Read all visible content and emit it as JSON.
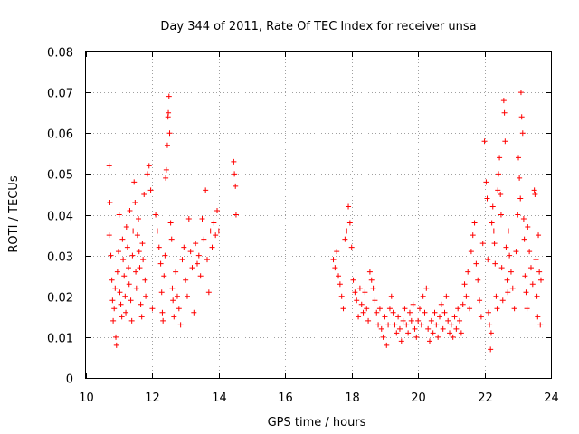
{
  "chart_data": {
    "type": "scatter",
    "title": "Day 344 of 2011, Rate Of TEC Index for receiver unsa",
    "xlabel": "GPS time / hours",
    "ylabel": "ROTI / TECUs",
    "xlim": [
      10,
      24
    ],
    "ylim": [
      0,
      0.08
    ],
    "x_ticks": [
      10,
      12,
      14,
      16,
      18,
      20,
      22,
      24
    ],
    "x_tick_labels": [
      "10",
      "12",
      "14",
      "16",
      "18",
      "20",
      "22",
      "24"
    ],
    "y_ticks": [
      0,
      0.01,
      0.02,
      0.03,
      0.04,
      0.05,
      0.06,
      0.07,
      0.08
    ],
    "y_tick_labels": [
      "0",
      "0.01",
      "0.02",
      "0.03",
      "0.04",
      "0.05",
      "0.06",
      "0.07",
      "0.08"
    ],
    "grid": true,
    "marker": "plus",
    "color": "#ff0000",
    "series": [
      {
        "points": [
          [
            10.7,
            0.052
          ],
          [
            10.72,
            0.043
          ],
          [
            10.7,
            0.035
          ],
          [
            10.75,
            0.03
          ],
          [
            10.78,
            0.024
          ],
          [
            10.8,
            0.019
          ],
          [
            10.82,
            0.014
          ],
          [
            10.85,
            0.017
          ],
          [
            10.88,
            0.022
          ],
          [
            10.9,
            0.01
          ],
          [
            10.92,
            0.008
          ],
          [
            10.95,
            0.026
          ],
          [
            10.98,
            0.031
          ],
          [
            11.0,
            0.04
          ],
          [
            11.02,
            0.021
          ],
          [
            11.05,
            0.018
          ],
          [
            11.08,
            0.015
          ],
          [
            11.1,
            0.034
          ],
          [
            11.12,
            0.029
          ],
          [
            11.15,
            0.025
          ],
          [
            11.18,
            0.02
          ],
          [
            11.2,
            0.016
          ],
          [
            11.22,
            0.037
          ],
          [
            11.25,
            0.032
          ],
          [
            11.28,
            0.027
          ],
          [
            11.3,
            0.023
          ],
          [
            11.32,
            0.041
          ],
          [
            11.35,
            0.019
          ],
          [
            11.38,
            0.014
          ],
          [
            11.4,
            0.03
          ],
          [
            11.42,
            0.036
          ],
          [
            11.45,
            0.048
          ],
          [
            11.48,
            0.043
          ],
          [
            11.5,
            0.026
          ],
          [
            11.52,
            0.022
          ],
          [
            11.55,
            0.035
          ],
          [
            11.58,
            0.039
          ],
          [
            11.6,
            0.031
          ],
          [
            11.62,
            0.027
          ],
          [
            11.65,
            0.018
          ],
          [
            11.68,
            0.015
          ],
          [
            11.7,
            0.033
          ],
          [
            11.72,
            0.029
          ],
          [
            11.75,
            0.045
          ],
          [
            11.78,
            0.024
          ],
          [
            11.8,
            0.02
          ],
          [
            11.85,
            0.05
          ],
          [
            11.9,
            0.052
          ],
          [
            11.95,
            0.046
          ],
          [
            12.0,
            0.017
          ],
          [
            12.1,
            0.04
          ],
          [
            12.15,
            0.036
          ],
          [
            12.2,
            0.032
          ],
          [
            12.25,
            0.028
          ],
          [
            12.28,
            0.021
          ],
          [
            12.3,
            0.016
          ],
          [
            12.32,
            0.014
          ],
          [
            12.35,
            0.025
          ],
          [
            12.38,
            0.03
          ],
          [
            12.4,
            0.049
          ],
          [
            12.42,
            0.051
          ],
          [
            12.45,
            0.057
          ],
          [
            12.47,
            0.064
          ],
          [
            12.48,
            0.065
          ],
          [
            12.5,
            0.069
          ],
          [
            12.52,
            0.06
          ],
          [
            12.55,
            0.038
          ],
          [
            12.58,
            0.034
          ],
          [
            12.6,
            0.022
          ],
          [
            12.62,
            0.019
          ],
          [
            12.65,
            0.015
          ],
          [
            12.7,
            0.026
          ],
          [
            12.75,
            0.02
          ],
          [
            12.8,
            0.017
          ],
          [
            12.85,
            0.013
          ],
          [
            12.9,
            0.029
          ],
          [
            12.95,
            0.032
          ],
          [
            13.0,
            0.024
          ],
          [
            13.05,
            0.02
          ],
          [
            13.1,
            0.039
          ],
          [
            13.15,
            0.031
          ],
          [
            13.2,
            0.027
          ],
          [
            13.25,
            0.016
          ],
          [
            13.3,
            0.033
          ],
          [
            13.35,
            0.028
          ],
          [
            13.4,
            0.03
          ],
          [
            13.45,
            0.025
          ],
          [
            13.5,
            0.039
          ],
          [
            13.55,
            0.034
          ],
          [
            13.6,
            0.046
          ],
          [
            13.65,
            0.029
          ],
          [
            13.7,
            0.021
          ],
          [
            13.75,
            0.036
          ],
          [
            13.8,
            0.032
          ],
          [
            13.85,
            0.038
          ],
          [
            13.9,
            0.035
          ],
          [
            13.95,
            0.041
          ],
          [
            14.0,
            0.036
          ],
          [
            14.45,
            0.053
          ],
          [
            14.47,
            0.05
          ],
          [
            14.5,
            0.047
          ],
          [
            14.52,
            0.04
          ],
          [
            17.45,
            0.029
          ],
          [
            17.5,
            0.027
          ],
          [
            17.55,
            0.031
          ],
          [
            17.6,
            0.025
          ],
          [
            17.65,
            0.023
          ],
          [
            17.7,
            0.02
          ],
          [
            17.75,
            0.017
          ],
          [
            17.8,
            0.034
          ],
          [
            17.85,
            0.036
          ],
          [
            17.9,
            0.042
          ],
          [
            17.95,
            0.038
          ],
          [
            18.0,
            0.032
          ],
          [
            18.05,
            0.024
          ],
          [
            18.1,
            0.021
          ],
          [
            18.15,
            0.019
          ],
          [
            18.2,
            0.015
          ],
          [
            18.25,
            0.022
          ],
          [
            18.3,
            0.018
          ],
          [
            18.35,
            0.016
          ],
          [
            18.4,
            0.021
          ],
          [
            18.45,
            0.017
          ],
          [
            18.5,
            0.014
          ],
          [
            18.55,
            0.026
          ],
          [
            18.6,
            0.024
          ],
          [
            18.65,
            0.022
          ],
          [
            18.7,
            0.019
          ],
          [
            18.75,
            0.016
          ],
          [
            18.8,
            0.013
          ],
          [
            18.85,
            0.017
          ],
          [
            18.9,
            0.012
          ],
          [
            18.95,
            0.01
          ],
          [
            19.0,
            0.015
          ],
          [
            19.05,
            0.008
          ],
          [
            19.1,
            0.013
          ],
          [
            19.15,
            0.017
          ],
          [
            19.2,
            0.02
          ],
          [
            19.25,
            0.016
          ],
          [
            19.3,
            0.013
          ],
          [
            19.35,
            0.011
          ],
          [
            19.4,
            0.015
          ],
          [
            19.45,
            0.012
          ],
          [
            19.5,
            0.009
          ],
          [
            19.55,
            0.014
          ],
          [
            19.6,
            0.017
          ],
          [
            19.65,
            0.013
          ],
          [
            19.7,
            0.011
          ],
          [
            19.75,
            0.016
          ],
          [
            19.8,
            0.014
          ],
          [
            19.85,
            0.018
          ],
          [
            19.9,
            0.012
          ],
          [
            19.95,
            0.01
          ],
          [
            20.0,
            0.014
          ],
          [
            20.05,
            0.017
          ],
          [
            20.1,
            0.013
          ],
          [
            20.15,
            0.02
          ],
          [
            20.2,
            0.016
          ],
          [
            20.25,
            0.022
          ],
          [
            20.3,
            0.012
          ],
          [
            20.35,
            0.009
          ],
          [
            20.4,
            0.014
          ],
          [
            20.45,
            0.011
          ],
          [
            20.5,
            0.016
          ],
          [
            20.55,
            0.013
          ],
          [
            20.6,
            0.01
          ],
          [
            20.65,
            0.015
          ],
          [
            20.7,
            0.018
          ],
          [
            20.75,
            0.012
          ],
          [
            20.8,
            0.016
          ],
          [
            20.85,
            0.02
          ],
          [
            20.9,
            0.014
          ],
          [
            20.95,
            0.011
          ],
          [
            21.0,
            0.013
          ],
          [
            21.05,
            0.01
          ],
          [
            21.1,
            0.015
          ],
          [
            21.15,
            0.012
          ],
          [
            21.2,
            0.017
          ],
          [
            21.25,
            0.014
          ],
          [
            21.3,
            0.011
          ],
          [
            21.35,
            0.018
          ],
          [
            21.4,
            0.023
          ],
          [
            21.45,
            0.02
          ],
          [
            21.5,
            0.026
          ],
          [
            21.55,
            0.017
          ],
          [
            21.6,
            0.031
          ],
          [
            21.65,
            0.035
          ],
          [
            21.7,
            0.038
          ],
          [
            21.75,
            0.028
          ],
          [
            21.8,
            0.024
          ],
          [
            21.85,
            0.019
          ],
          [
            21.9,
            0.015
          ],
          [
            21.95,
            0.033
          ],
          [
            22.0,
            0.058
          ],
          [
            22.05,
            0.048
          ],
          [
            22.08,
            0.044
          ],
          [
            22.1,
            0.029
          ],
          [
            22.12,
            0.016
          ],
          [
            22.15,
            0.013
          ],
          [
            22.18,
            0.007
          ],
          [
            22.2,
            0.011
          ],
          [
            22.22,
            0.038
          ],
          [
            22.25,
            0.042
          ],
          [
            22.28,
            0.036
          ],
          [
            22.3,
            0.033
          ],
          [
            22.32,
            0.028
          ],
          [
            22.35,
            0.02
          ],
          [
            22.38,
            0.017
          ],
          [
            22.4,
            0.046
          ],
          [
            22.42,
            0.05
          ],
          [
            22.45,
            0.054
          ],
          [
            22.48,
            0.045
          ],
          [
            22.5,
            0.04
          ],
          [
            22.52,
            0.027
          ],
          [
            22.55,
            0.019
          ],
          [
            22.58,
            0.068
          ],
          [
            22.6,
            0.065
          ],
          [
            22.62,
            0.058
          ],
          [
            22.65,
            0.032
          ],
          [
            22.68,
            0.024
          ],
          [
            22.7,
            0.021
          ],
          [
            22.72,
            0.036
          ],
          [
            22.75,
            0.03
          ],
          [
            22.8,
            0.026
          ],
          [
            22.85,
            0.022
          ],
          [
            22.9,
            0.017
          ],
          [
            22.95,
            0.031
          ],
          [
            23.0,
            0.04
          ],
          [
            23.02,
            0.054
          ],
          [
            23.05,
            0.049
          ],
          [
            23.08,
            0.044
          ],
          [
            23.1,
            0.07
          ],
          [
            23.12,
            0.064
          ],
          [
            23.15,
            0.06
          ],
          [
            23.18,
            0.039
          ],
          [
            23.2,
            0.034
          ],
          [
            23.22,
            0.025
          ],
          [
            23.25,
            0.021
          ],
          [
            23.28,
            0.017
          ],
          [
            23.3,
            0.037
          ],
          [
            23.35,
            0.031
          ],
          [
            23.4,
            0.027
          ],
          [
            23.45,
            0.023
          ],
          [
            23.5,
            0.046
          ],
          [
            23.52,
            0.045
          ],
          [
            23.55,
            0.029
          ],
          [
            23.58,
            0.02
          ],
          [
            23.6,
            0.015
          ],
          [
            23.62,
            0.035
          ],
          [
            23.65,
            0.026
          ],
          [
            23.68,
            0.013
          ],
          [
            23.7,
            0.024
          ]
        ]
      }
    ]
  }
}
